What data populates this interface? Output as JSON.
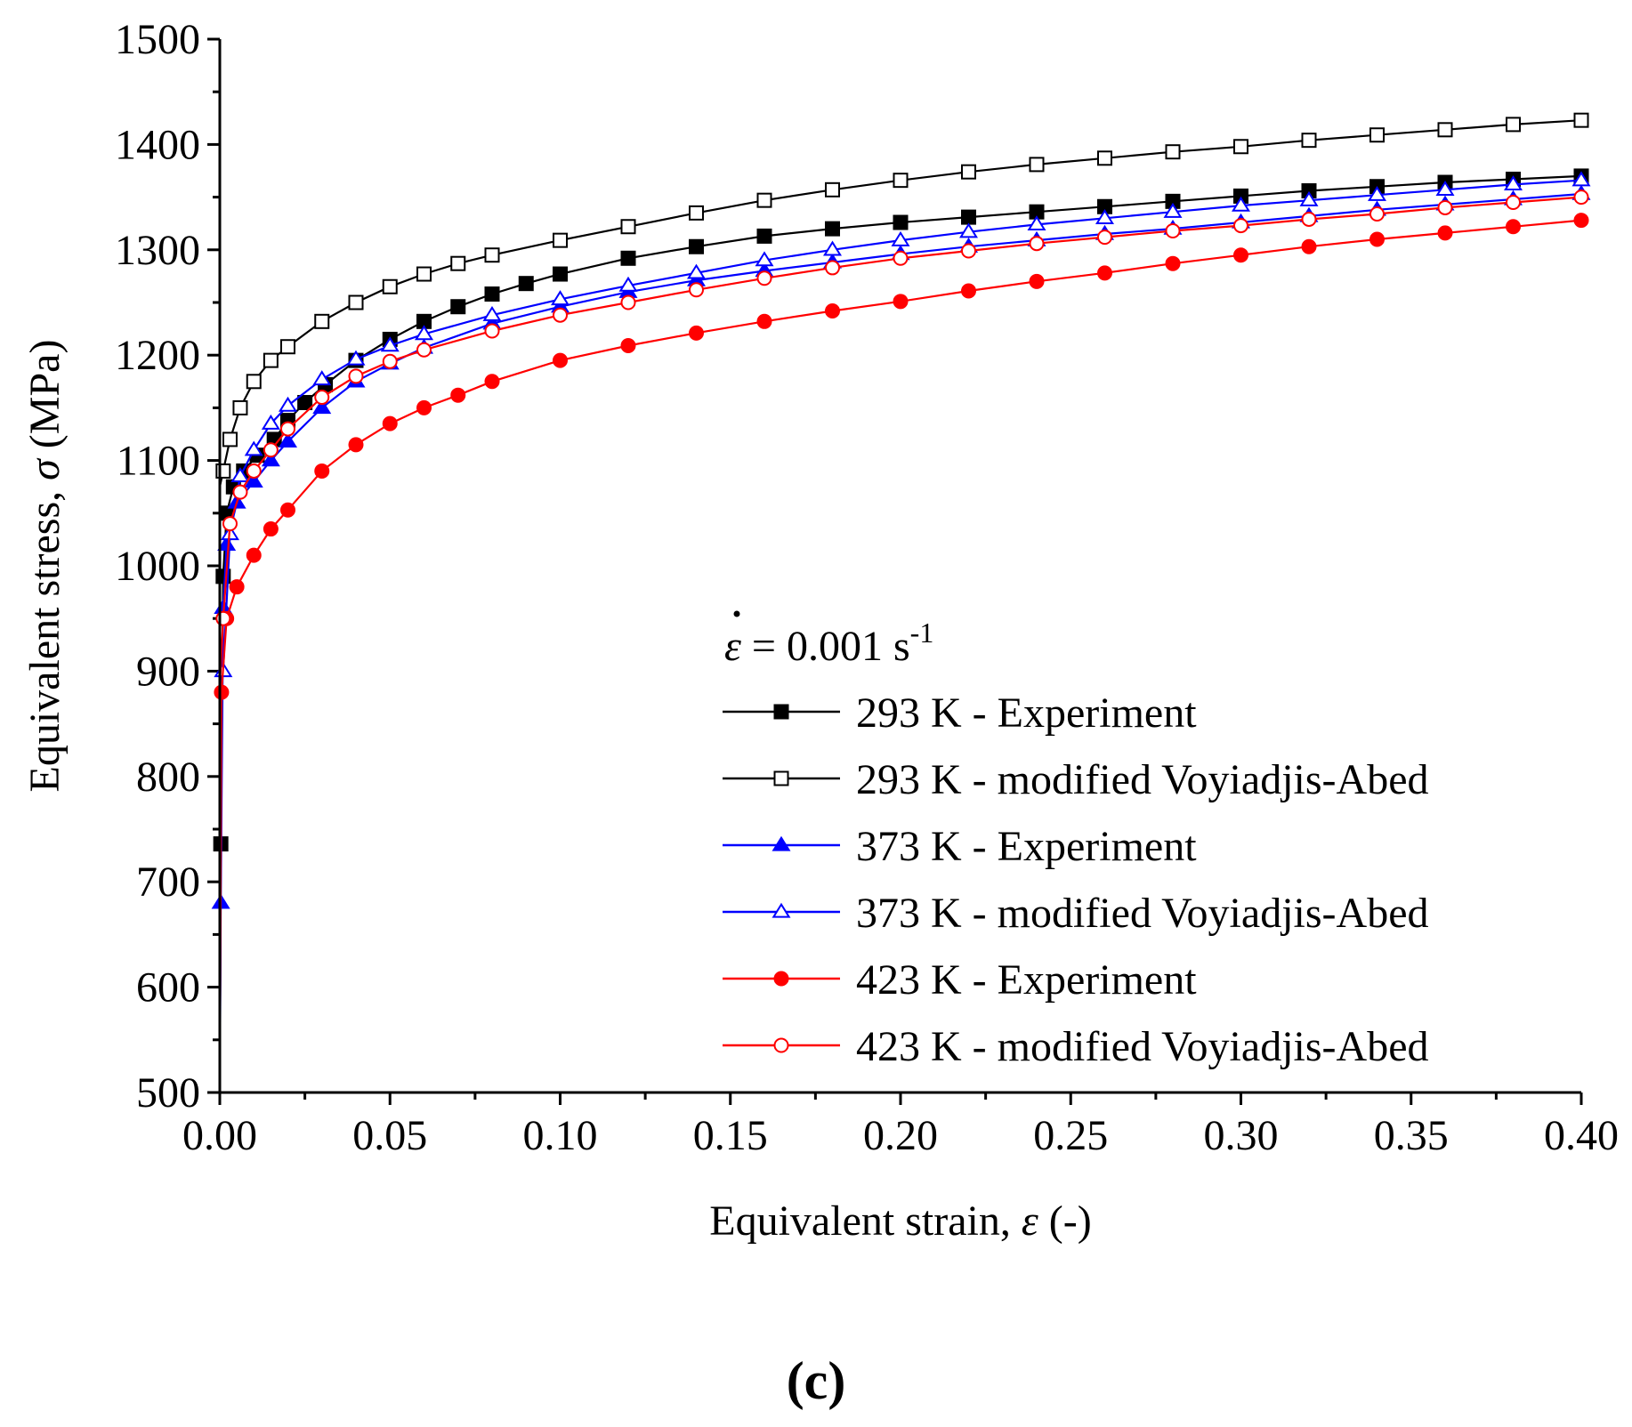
{
  "chart_data": {
    "type": "line",
    "xlabel_prefix": "Equivalent strain, ",
    "xlabel_symbol": "ε",
    "xlabel_suffix": " (-)",
    "ylabel_prefix": "Equivalent stress, ",
    "ylabel_symbol": "σ",
    "ylabel_suffix": " (MPa)",
    "xlim": [
      0,
      0.4
    ],
    "ylim": [
      500,
      1500
    ],
    "xticks": [
      0.0,
      0.05,
      0.1,
      0.15,
      0.2,
      0.25,
      0.3,
      0.35,
      0.4
    ],
    "xtick_labels": [
      "0.00",
      "0.05",
      "0.10",
      "0.15",
      "0.20",
      "0.25",
      "0.30",
      "0.35",
      "0.40"
    ],
    "yticks": [
      500,
      600,
      700,
      800,
      900,
      1000,
      1100,
      1200,
      1300,
      1400,
      1500
    ],
    "ytick_labels": [
      "500",
      "600",
      "700",
      "800",
      "900",
      "1000",
      "1100",
      "1200",
      "1300",
      "1400",
      "1500"
    ],
    "legend_title": {
      "symbol": "ε",
      "text": " = 0.001 s",
      "superscript": "-1"
    },
    "legend_position": "center-right",
    "panel_label": "(c)",
    "series": [
      {
        "name": "293 K - Experiment",
        "color": "#000000",
        "marker": "square",
        "filled": true,
        "x": [
          0.0,
          0.0003,
          0.001,
          0.002,
          0.004,
          0.007,
          0.011,
          0.016,
          0.02,
          0.025,
          0.031,
          0.04,
          0.05,
          0.06,
          0.07,
          0.08,
          0.09,
          0.1,
          0.12,
          0.14,
          0.16,
          0.18,
          0.2,
          0.22,
          0.24,
          0.26,
          0.28,
          0.3,
          0.32,
          0.34,
          0.36,
          0.38,
          0.4
        ],
        "y": [
          500,
          736,
          990,
          1050,
          1075,
          1090,
          1105,
          1120,
          1138,
          1155,
          1172,
          1195,
          1215,
          1232,
          1246,
          1258,
          1268,
          1277,
          1292,
          1303,
          1313,
          1320,
          1326,
          1331,
          1336,
          1341,
          1346,
          1351,
          1356,
          1360,
          1364,
          1367,
          1370
        ]
      },
      {
        "name": "293 K - modified Voyiadjis-Abed",
        "color": "#000000",
        "marker": "square",
        "filled": false,
        "x": [
          0.0,
          0.001,
          0.003,
          0.006,
          0.01,
          0.015,
          0.02,
          0.03,
          0.04,
          0.05,
          0.06,
          0.07,
          0.08,
          0.1,
          0.12,
          0.14,
          0.16,
          0.18,
          0.2,
          0.22,
          0.24,
          0.26,
          0.28,
          0.3,
          0.32,
          0.34,
          0.36,
          0.38,
          0.4
        ],
        "y": [
          1075,
          1090,
          1120,
          1150,
          1175,
          1195,
          1208,
          1232,
          1250,
          1265,
          1277,
          1287,
          1295,
          1309,
          1322,
          1335,
          1347,
          1357,
          1366,
          1374,
          1381,
          1387,
          1393,
          1398,
          1404,
          1409,
          1414,
          1419,
          1423
        ]
      },
      {
        "name": "373 K - Experiment",
        "color": "#0000ff",
        "marker": "triangle",
        "filled": true,
        "x": [
          0.0,
          0.0003,
          0.001,
          0.002,
          0.005,
          0.01,
          0.015,
          0.02,
          0.03,
          0.04,
          0.05,
          0.06,
          0.08,
          0.1,
          0.12,
          0.14,
          0.16,
          0.18,
          0.2,
          0.22,
          0.24,
          0.26,
          0.28,
          0.3,
          0.32,
          0.34,
          0.36,
          0.38,
          0.4
        ],
        "y": [
          500,
          680,
          960,
          1020,
          1060,
          1080,
          1100,
          1118,
          1150,
          1175,
          1192,
          1207,
          1230,
          1246,
          1260,
          1271,
          1280,
          1288,
          1296,
          1303,
          1309,
          1315,
          1320,
          1326,
          1332,
          1338,
          1343,
          1348,
          1353
        ]
      },
      {
        "name": "373 K - modified Voyiadjis-Abed",
        "color": "#0000ff",
        "marker": "triangle",
        "filled": false,
        "x": [
          0.0,
          0.001,
          0.003,
          0.006,
          0.01,
          0.015,
          0.02,
          0.03,
          0.04,
          0.05,
          0.06,
          0.08,
          0.1,
          0.12,
          0.14,
          0.16,
          0.18,
          0.2,
          0.22,
          0.24,
          0.26,
          0.28,
          0.3,
          0.32,
          0.34,
          0.36,
          0.38,
          0.4
        ],
        "y": [
          880,
          900,
          1030,
          1085,
          1110,
          1135,
          1152,
          1177,
          1196,
          1209,
          1220,
          1238,
          1253,
          1266,
          1278,
          1290,
          1300,
          1309,
          1317,
          1324,
          1330,
          1336,
          1342,
          1347,
          1352,
          1357,
          1362,
          1366
        ]
      },
      {
        "name": "423 K - Experiment",
        "color": "#ff0000",
        "marker": "circle",
        "filled": true,
        "x": [
          0.0,
          0.0005,
          0.002,
          0.005,
          0.01,
          0.015,
          0.02,
          0.03,
          0.04,
          0.05,
          0.06,
          0.07,
          0.08,
          0.1,
          0.12,
          0.14,
          0.16,
          0.18,
          0.2,
          0.22,
          0.24,
          0.26,
          0.28,
          0.3,
          0.32,
          0.34,
          0.36,
          0.38,
          0.4
        ],
        "y": [
          500,
          880,
          950,
          980,
          1010,
          1035,
          1053,
          1090,
          1115,
          1135,
          1150,
          1162,
          1175,
          1195,
          1209,
          1221,
          1232,
          1242,
          1251,
          1261,
          1270,
          1278,
          1287,
          1295,
          1303,
          1310,
          1316,
          1322,
          1328
        ]
      },
      {
        "name": "423 K - modified Voyiadjis-Abed",
        "color": "#ff0000",
        "marker": "circle",
        "filled": false,
        "x": [
          0.0,
          0.001,
          0.003,
          0.006,
          0.01,
          0.015,
          0.02,
          0.03,
          0.04,
          0.05,
          0.06,
          0.08,
          0.1,
          0.12,
          0.14,
          0.16,
          0.18,
          0.2,
          0.22,
          0.24,
          0.26,
          0.28,
          0.3,
          0.32,
          0.34,
          0.36,
          0.38,
          0.4
        ],
        "y": [
          885,
          950,
          1040,
          1070,
          1090,
          1110,
          1130,
          1160,
          1180,
          1194,
          1205,
          1223,
          1238,
          1250,
          1262,
          1273,
          1283,
          1292,
          1299,
          1306,
          1312,
          1318,
          1323,
          1329,
          1334,
          1340,
          1345,
          1350
        ]
      }
    ]
  }
}
